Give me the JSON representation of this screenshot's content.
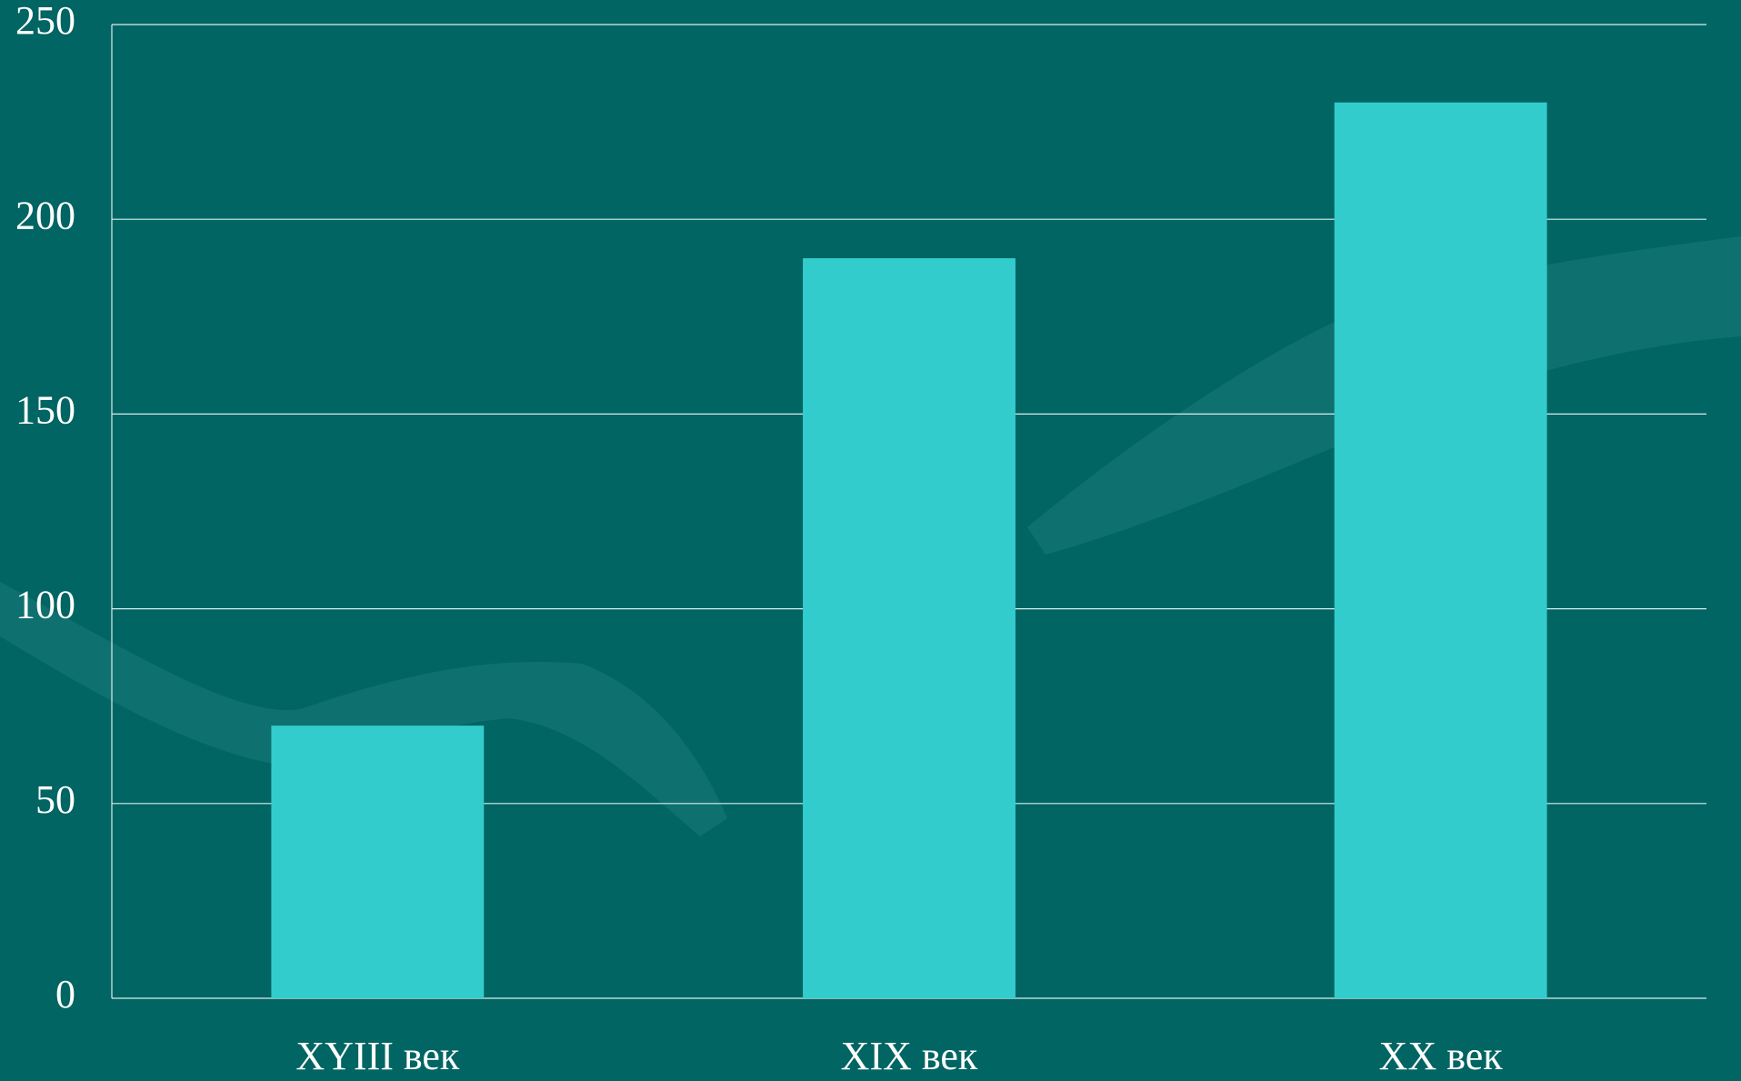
{
  "chart_data": {
    "type": "bar",
    "categories": [
      "XYIII век",
      "XIX век",
      "XX век"
    ],
    "values": [
      70,
      190,
      230
    ],
    "color": "#33cccc",
    "ylim": [
      0,
      250
    ],
    "yticks": [
      0,
      50,
      100,
      150,
      200,
      250
    ],
    "grid": true
  }
}
